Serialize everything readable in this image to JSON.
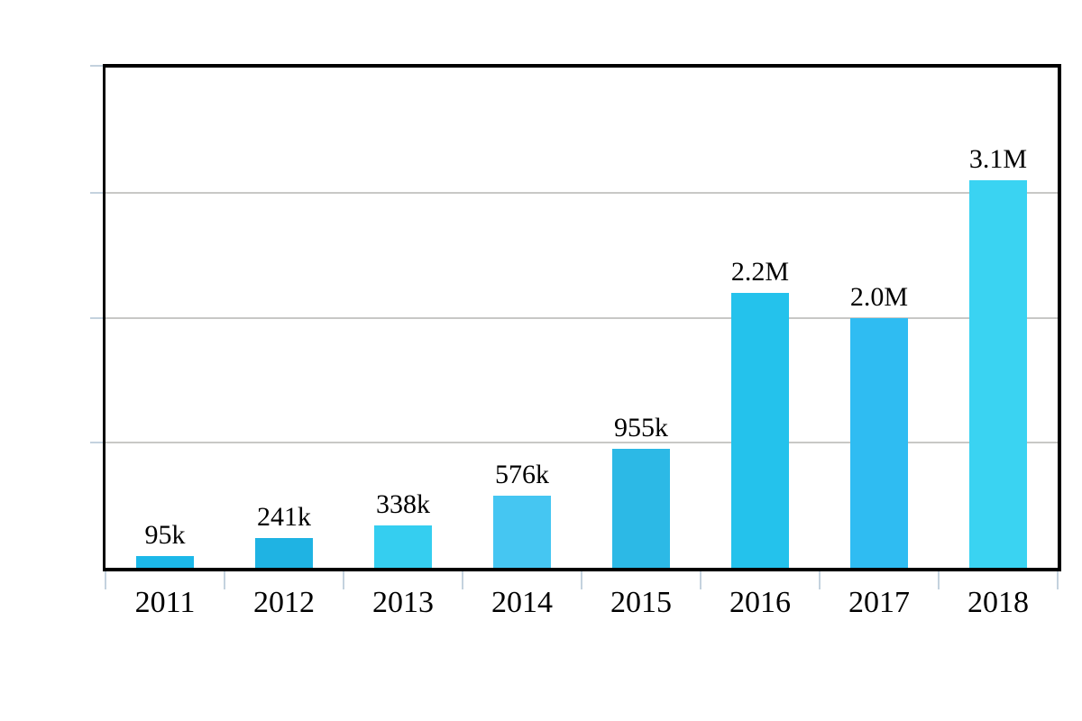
{
  "chart_data": {
    "type": "bar",
    "title": "",
    "xlabel": "",
    "ylabel": "",
    "categories": [
      "2011",
      "2012",
      "2013",
      "2014",
      "2015",
      "2016",
      "2017",
      "2018"
    ],
    "values": [
      0.095,
      0.241,
      0.338,
      0.576,
      0.955,
      2.2,
      2.0,
      3.1
    ],
    "value_labels": [
      "95k",
      "241k",
      "338k",
      "576k",
      "955k",
      "2.2M",
      "2.0M",
      "3.1M"
    ],
    "unit": "count (k = thousands, M = millions)",
    "ylim": [
      0,
      4
    ],
    "gridline_values": [
      1,
      2,
      3
    ],
    "grid": "horizontal",
    "legend": "none",
    "y_axis_tick_labels": "none",
    "bar_colors": [
      "#1CB8E9",
      "#1FB3E3",
      "#35CEF0",
      "#45C6F2",
      "#2CB9E6",
      "#24C2EC",
      "#2FBCF2",
      "#3AD3F2"
    ],
    "colors": {
      "gridline": "#C8C8C6",
      "tick": "#C4D2DE",
      "axis_frame": "#000000",
      "label_text": "#000000",
      "background": "#FFFFFF"
    }
  }
}
